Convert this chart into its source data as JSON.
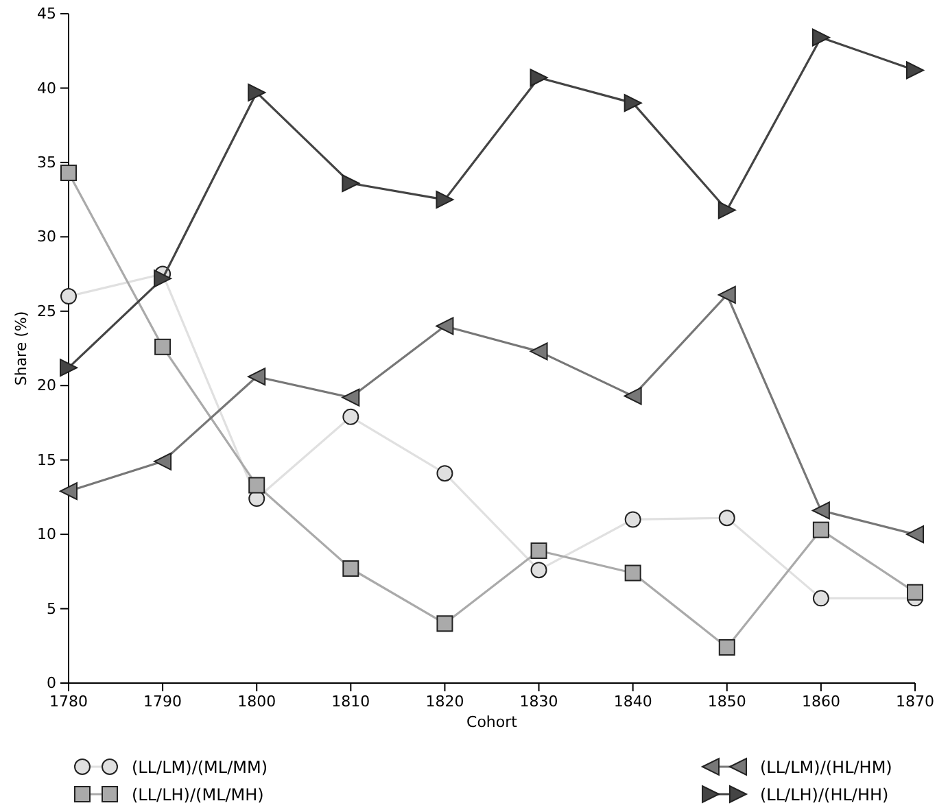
{
  "chart_data": {
    "type": "line",
    "xlabel": "Cohort",
    "ylabel": "Share (%)",
    "x": [
      1780,
      1790,
      1800,
      1810,
      1820,
      1830,
      1840,
      1850,
      1860,
      1870
    ],
    "xlim": [
      1780,
      1870
    ],
    "xticks": [
      1780,
      1790,
      1800,
      1810,
      1820,
      1830,
      1840,
      1850,
      1860,
      1870
    ],
    "ylim": [
      0,
      45
    ],
    "yticks": [
      0,
      5,
      10,
      15,
      20,
      25,
      30,
      35,
      40,
      45
    ],
    "grid": false,
    "legend": "bottom",
    "series": [
      {
        "name": "(LL/LM)/(ML/MM)",
        "color": "#e0e0e0",
        "marker": "circle",
        "values": [
          26.0,
          27.5,
          12.4,
          17.9,
          14.1,
          7.6,
          11.0,
          11.1,
          5.7,
          5.7
        ]
      },
      {
        "name": "(LL/LH)/(ML/MH)",
        "color": "#aaaaaa",
        "marker": "square",
        "values": [
          34.3,
          22.6,
          13.3,
          7.7,
          4.0,
          8.9,
          7.4,
          2.4,
          10.3,
          6.1
        ]
      },
      {
        "name": "(LL/LM)/(HL/HM)",
        "color": "#777777",
        "marker": "triangle-left",
        "values": [
          12.9,
          14.9,
          20.6,
          19.2,
          24.0,
          22.3,
          19.3,
          26.1,
          11.6,
          10.0
        ]
      },
      {
        "name": "(LL/LH)/(HL/HH)",
        "color": "#444444",
        "marker": "triangle-right",
        "values": [
          21.2,
          27.2,
          39.7,
          33.6,
          32.5,
          40.7,
          39.0,
          31.8,
          43.4,
          41.2
        ]
      }
    ]
  }
}
